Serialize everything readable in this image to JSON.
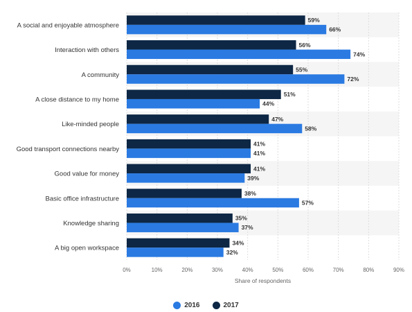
{
  "chart_data": {
    "type": "bar",
    "orientation": "horizontal",
    "categories": [
      "A social and enjoyable atmosphere",
      "Interaction with others",
      "A community",
      "A close distance to my home",
      "Like-minded people",
      "Good transport connections nearby",
      "Good value for money",
      "Basic office infrastructure",
      "Knowledge sharing",
      "A big open workspace"
    ],
    "series": [
      {
        "name": "2017",
        "color": "#0d2745",
        "values": [
          59,
          56,
          55,
          51,
          47,
          41,
          41,
          38,
          35,
          34
        ]
      },
      {
        "name": "2016",
        "color": "#2a7ae2",
        "values": [
          66,
          74,
          72,
          44,
          58,
          41,
          39,
          57,
          37,
          32
        ]
      }
    ],
    "value_suffix": "%",
    "xlim": [
      0,
      90
    ],
    "xticks": [
      "0%",
      "10%",
      "20%",
      "30%",
      "40%",
      "50%",
      "60%",
      "70%",
      "80%",
      "90%"
    ],
    "xlabel": "Share of respondents",
    "grid": true,
    "legend_position": "bottom"
  },
  "legend": [
    {
      "label": "2016",
      "color": "#2a7ae2"
    },
    {
      "label": "2017",
      "color": "#0d2745"
    }
  ]
}
